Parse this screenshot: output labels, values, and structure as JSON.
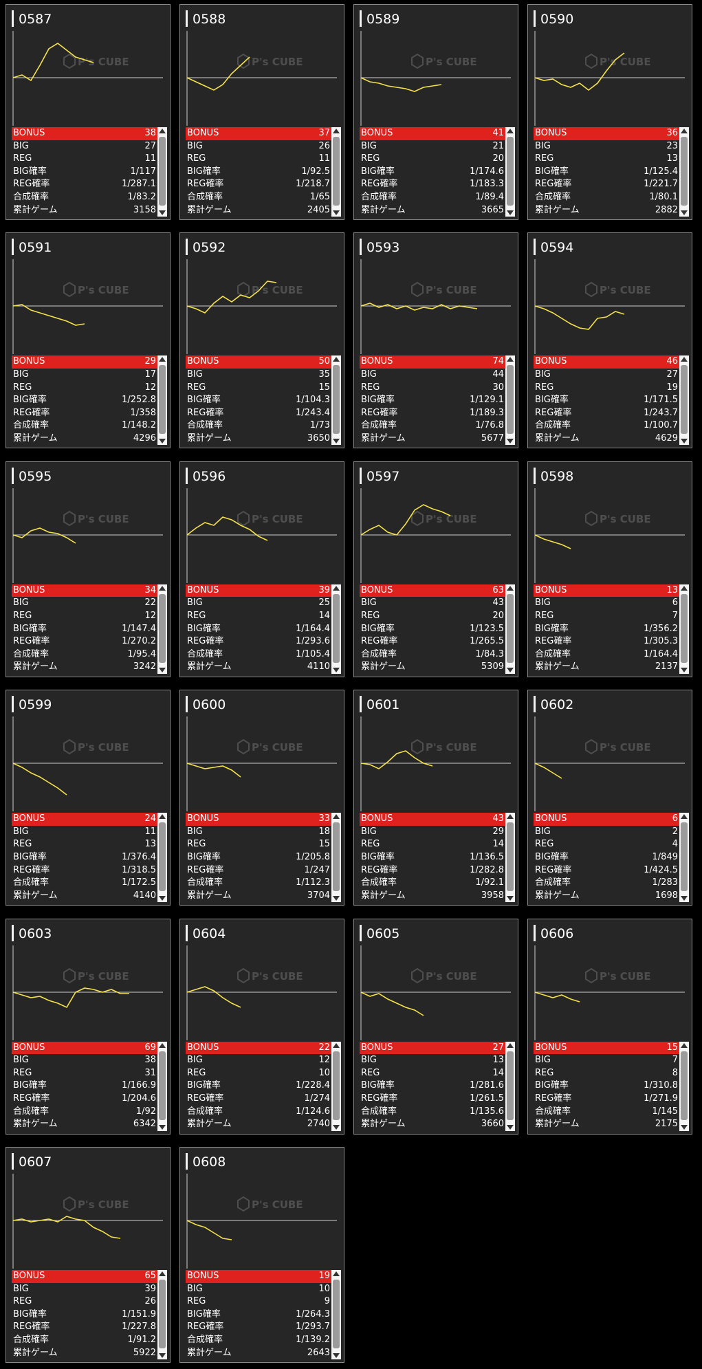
{
  "colors": {
    "background": "#000000",
    "card": "#262626",
    "bonus_row": "#e0221e",
    "graph_line": "#f5e24b",
    "axis": "#d0d0d0"
  },
  "watermark": {
    "text": "P's CUBE",
    "icon": "cube-logo-icon"
  },
  "row_labels": [
    "BONUS",
    "BIG",
    "REG",
    "BIG確率",
    "REG確率",
    "合成確率",
    "累計ゲーム"
  ],
  "machines": [
    {
      "id": "0587",
      "bonus": "38",
      "big": "27",
      "reg": "11",
      "big_rate": "1/117",
      "reg_rate": "1/287.1",
      "combined_rate": "1/83.2",
      "total_games": "3158",
      "graph": [
        0,
        4,
        -4,
        18,
        42,
        50,
        40,
        30,
        26,
        22
      ]
    },
    {
      "id": "0588",
      "bonus": "37",
      "big": "26",
      "reg": "11",
      "big_rate": "1/92.5",
      "reg_rate": "1/218.7",
      "combined_rate": "1/65",
      "total_games": "2405",
      "graph": [
        0,
        -6,
        -12,
        -18,
        -10,
        6,
        18,
        30
      ]
    },
    {
      "id": "0589",
      "bonus": "41",
      "big": "21",
      "reg": "20",
      "big_rate": "1/174.6",
      "reg_rate": "1/183.3",
      "combined_rate": "1/89.4",
      "total_games": "3665",
      "graph": [
        0,
        -6,
        -8,
        -12,
        -14,
        -16,
        -20,
        -14,
        -12,
        -10
      ]
    },
    {
      "id": "0590",
      "bonus": "36",
      "big": "23",
      "reg": "13",
      "big_rate": "1/125.4",
      "reg_rate": "1/221.7",
      "combined_rate": "1/80.1",
      "total_games": "2882",
      "graph": [
        0,
        -4,
        -2,
        -10,
        -14,
        -8,
        -18,
        -8,
        10,
        26,
        36
      ]
    },
    {
      "id": "0591",
      "bonus": "29",
      "big": "17",
      "reg": "12",
      "big_rate": "1/252.8",
      "reg_rate": "1/358",
      "combined_rate": "1/148.2",
      "total_games": "4296",
      "graph": [
        0,
        2,
        -6,
        -10,
        -14,
        -18,
        -22,
        -28,
        -26
      ]
    },
    {
      "id": "0592",
      "bonus": "50",
      "big": "35",
      "reg": "15",
      "big_rate": "1/104.3",
      "reg_rate": "1/243.4",
      "combined_rate": "1/73",
      "total_games": "3650",
      "graph": [
        0,
        -4,
        -10,
        4,
        14,
        6,
        16,
        12,
        22,
        36,
        34
      ]
    },
    {
      "id": "0593",
      "bonus": "74",
      "big": "44",
      "reg": "30",
      "big_rate": "1/129.1",
      "reg_rate": "1/189.3",
      "combined_rate": "1/76.8",
      "total_games": "5677",
      "graph": [
        0,
        4,
        -2,
        2,
        -4,
        0,
        -6,
        -2,
        -4,
        2,
        -4,
        0,
        -2,
        -4
      ]
    },
    {
      "id": "0594",
      "bonus": "46",
      "big": "27",
      "reg": "19",
      "big_rate": "1/171.5",
      "reg_rate": "1/243.7",
      "combined_rate": "1/100.7",
      "total_games": "4629",
      "graph": [
        0,
        -4,
        -10,
        -18,
        -26,
        -32,
        -34,
        -18,
        -16,
        -8,
        -12
      ]
    },
    {
      "id": "0595",
      "bonus": "34",
      "big": "22",
      "reg": "12",
      "big_rate": "1/147.4",
      "reg_rate": "1/270.2",
      "combined_rate": "1/95.4",
      "total_games": "3242",
      "graph": [
        0,
        -4,
        6,
        10,
        4,
        2,
        -4,
        -12
      ]
    },
    {
      "id": "0596",
      "bonus": "39",
      "big": "25",
      "reg": "14",
      "big_rate": "1/164.4",
      "reg_rate": "1/293.6",
      "combined_rate": "1/105.4",
      "total_games": "4110",
      "graph": [
        0,
        10,
        18,
        14,
        26,
        22,
        14,
        8,
        -2,
        -8
      ]
    },
    {
      "id": "0597",
      "bonus": "63",
      "big": "43",
      "reg": "20",
      "big_rate": "1/123.5",
      "reg_rate": "1/265.5",
      "combined_rate": "1/84.3",
      "total_games": "5309",
      "graph": [
        0,
        8,
        14,
        4,
        0,
        16,
        36,
        44,
        38,
        34,
        28
      ]
    },
    {
      "id": "0598",
      "bonus": "13",
      "big": "6",
      "reg": "7",
      "big_rate": "1/356.2",
      "reg_rate": "1/305.3",
      "combined_rate": "1/164.4",
      "total_games": "2137",
      "graph": [
        0,
        -6,
        -10,
        -14,
        -20
      ]
    },
    {
      "id": "0599",
      "bonus": "24",
      "big": "11",
      "reg": "13",
      "big_rate": "1/376.4",
      "reg_rate": "1/318.5",
      "combined_rate": "1/172.5",
      "total_games": "4140",
      "graph": [
        0,
        -6,
        -14,
        -20,
        -28,
        -36,
        -46
      ]
    },
    {
      "id": "0600",
      "bonus": "33",
      "big": "18",
      "reg": "15",
      "big_rate": "1/205.8",
      "reg_rate": "1/247",
      "combined_rate": "1/112.3",
      "total_games": "3704",
      "graph": [
        0,
        -4,
        -8,
        -6,
        -4,
        -10,
        -20
      ]
    },
    {
      "id": "0601",
      "bonus": "43",
      "big": "29",
      "reg": "14",
      "big_rate": "1/136.5",
      "reg_rate": "1/282.8",
      "combined_rate": "1/92.1",
      "total_games": "3958",
      "graph": [
        0,
        -2,
        -8,
        2,
        14,
        18,
        8,
        0,
        -4
      ]
    },
    {
      "id": "0602",
      "bonus": "6",
      "big": "2",
      "reg": "4",
      "big_rate": "1/849",
      "reg_rate": "1/424.5",
      "combined_rate": "1/283",
      "total_games": "1698",
      "graph": [
        0,
        -6,
        -14,
        -22
      ]
    },
    {
      "id": "0603",
      "bonus": "69",
      "big": "38",
      "reg": "31",
      "big_rate": "1/166.9",
      "reg_rate": "1/204.6",
      "combined_rate": "1/92",
      "total_games": "6342",
      "graph": [
        0,
        -4,
        -8,
        -6,
        -12,
        -16,
        -22,
        0,
        6,
        4,
        0,
        4,
        -2,
        -2
      ]
    },
    {
      "id": "0604",
      "bonus": "22",
      "big": "12",
      "reg": "10",
      "big_rate": "1/228.4",
      "reg_rate": "1/274",
      "combined_rate": "1/124.6",
      "total_games": "2740",
      "graph": [
        0,
        4,
        8,
        2,
        -8,
        -16,
        -22
      ]
    },
    {
      "id": "0605",
      "bonus": "27",
      "big": "13",
      "reg": "14",
      "big_rate": "1/281.6",
      "reg_rate": "1/261.5",
      "combined_rate": "1/135.6",
      "total_games": "3660",
      "graph": [
        0,
        -6,
        -2,
        -10,
        -16,
        -22,
        -26,
        -34
      ]
    },
    {
      "id": "0606",
      "bonus": "15",
      "big": "7",
      "reg": "8",
      "big_rate": "1/310.8",
      "reg_rate": "1/271.9",
      "combined_rate": "1/145",
      "total_games": "2175",
      "graph": [
        0,
        -4,
        -8,
        -4,
        -10,
        -14
      ]
    },
    {
      "id": "0607",
      "bonus": "65",
      "big": "39",
      "reg": "26",
      "big_rate": "1/151.9",
      "reg_rate": "1/227.8",
      "combined_rate": "1/91.2",
      "total_games": "5922",
      "graph": [
        0,
        2,
        -2,
        0,
        2,
        -2,
        6,
        2,
        0,
        -10,
        -16,
        -24,
        -26
      ]
    },
    {
      "id": "0608",
      "bonus": "19",
      "big": "10",
      "reg": "9",
      "big_rate": "1/264.3",
      "reg_rate": "1/293.7",
      "combined_rate": "1/139.2",
      "total_games": "2643",
      "graph": [
        0,
        -6,
        -10,
        -18,
        -26,
        -28
      ]
    }
  ]
}
